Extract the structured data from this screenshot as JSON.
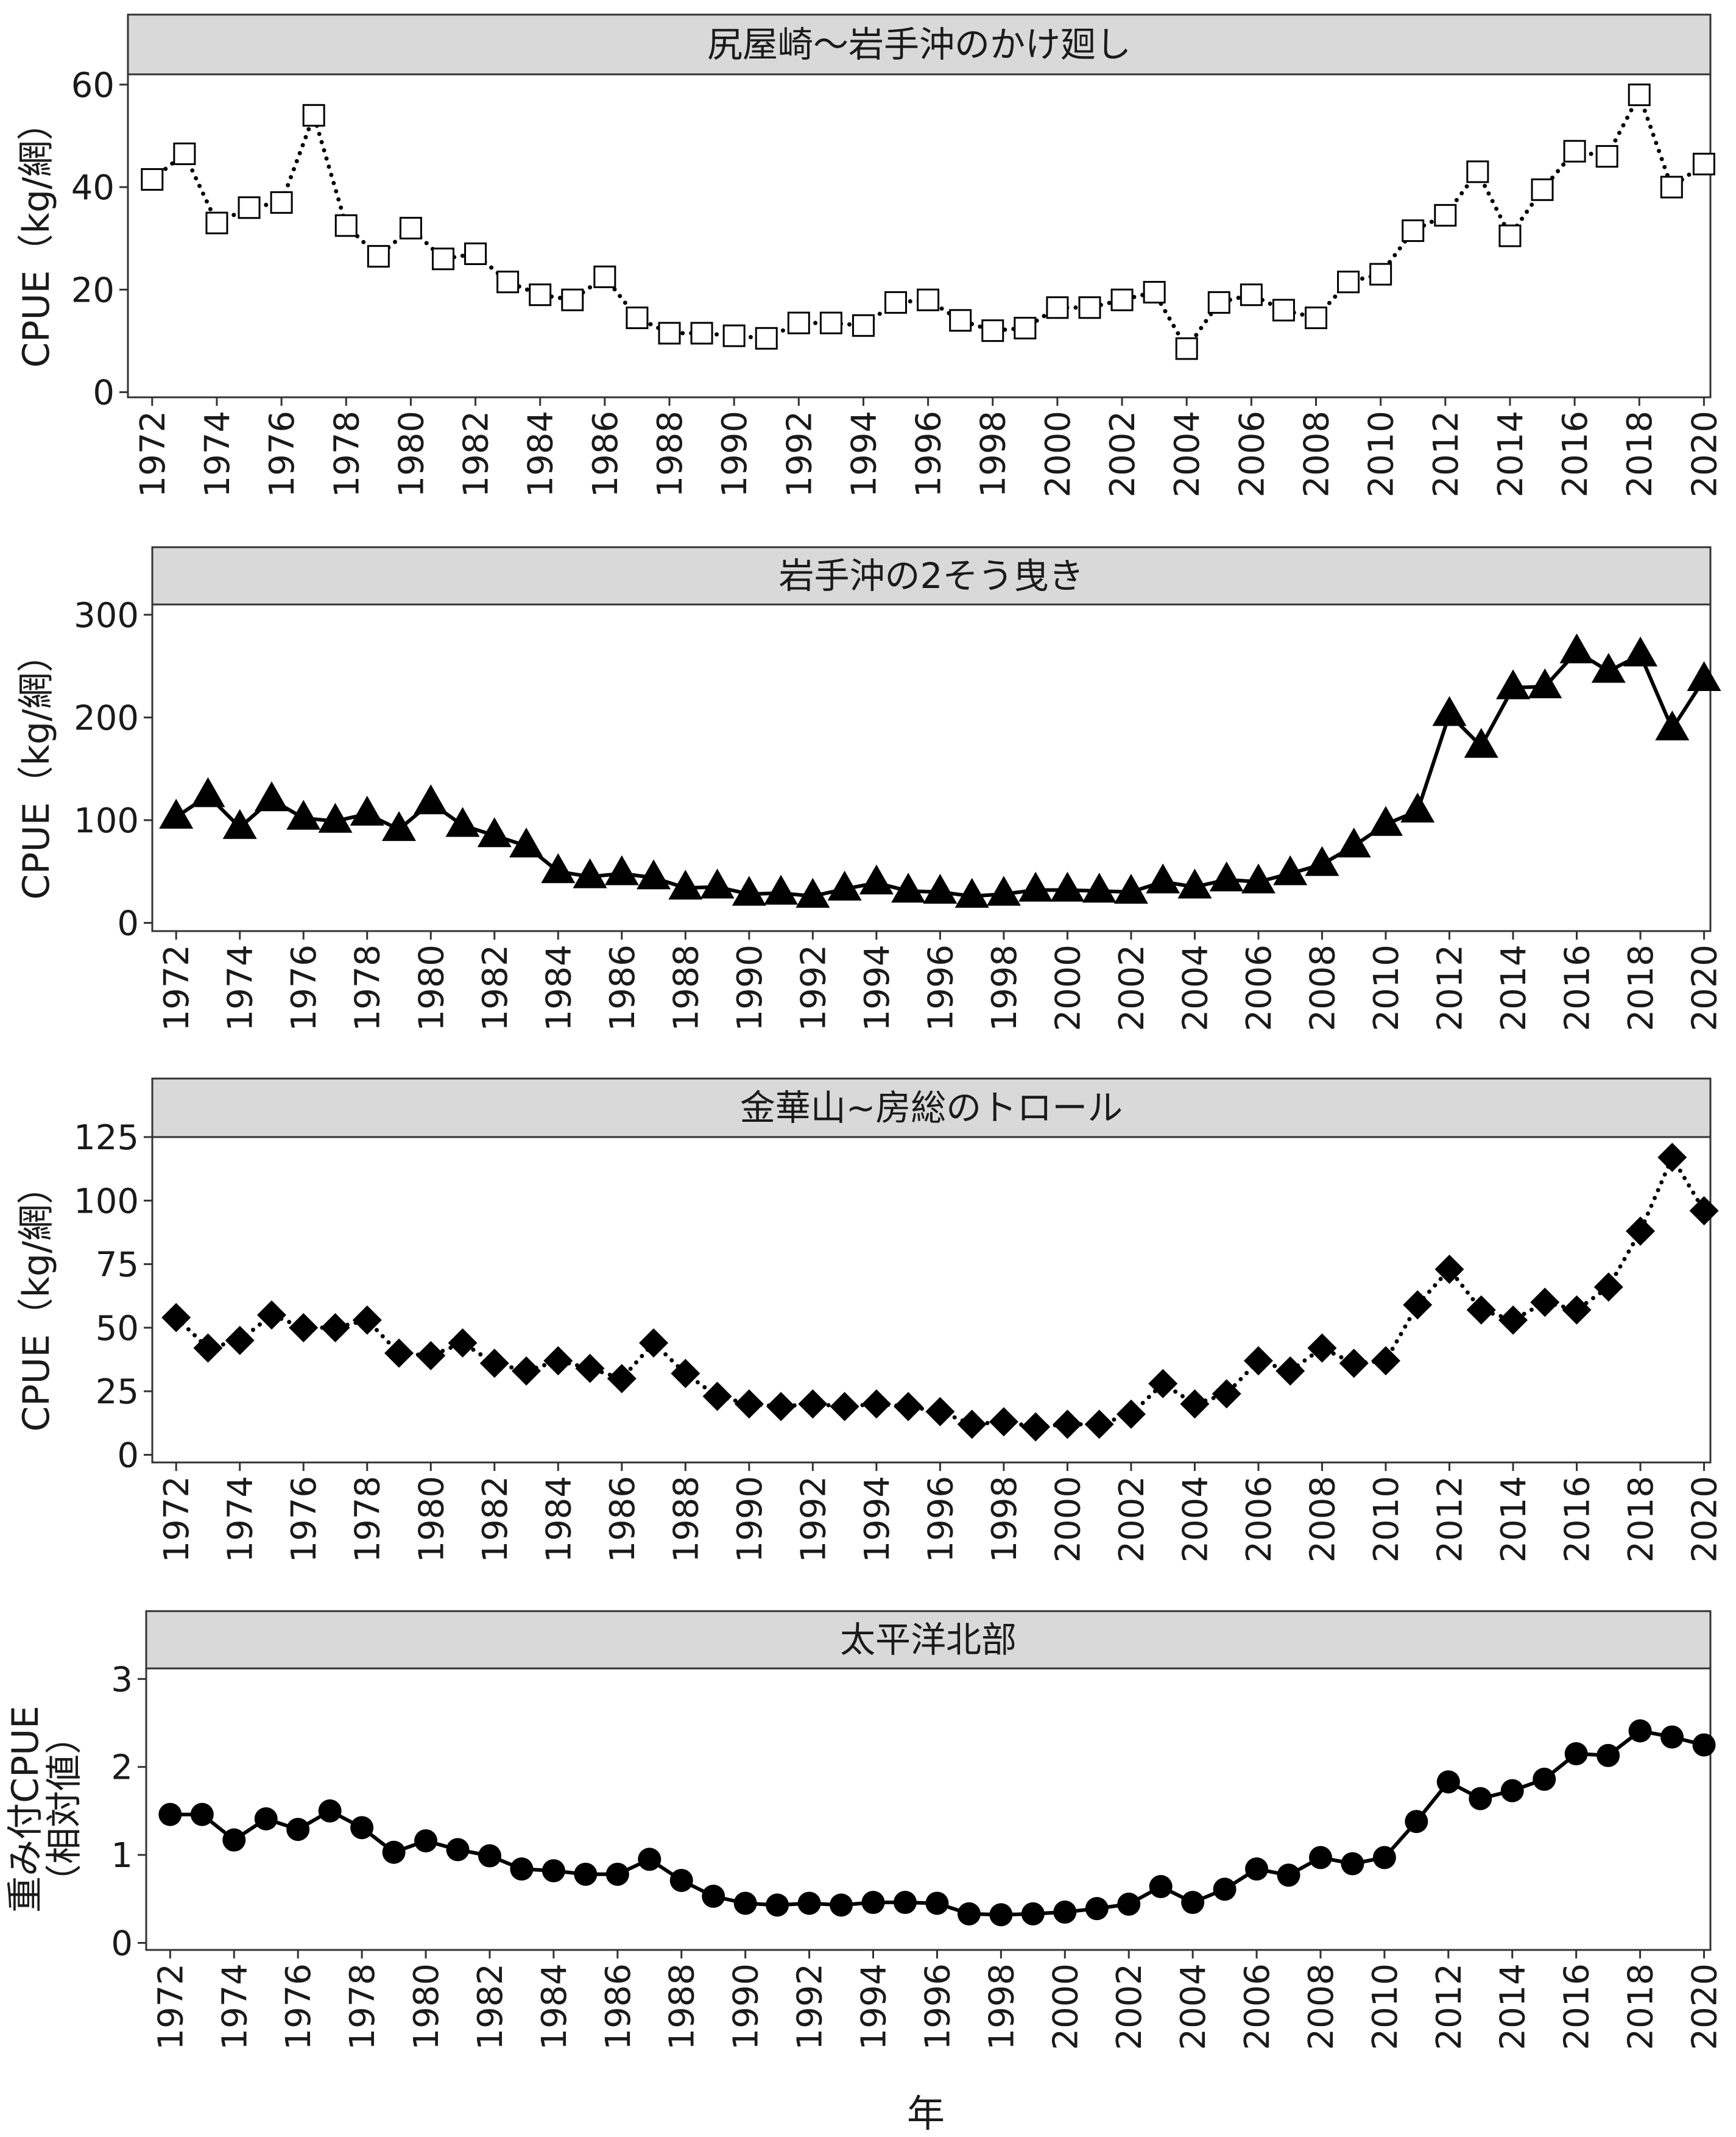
{
  "x_axis_title": "年",
  "chart_data": [
    {
      "type": "line",
      "title": "尻屋崎～岩手沖のかけ廻し",
      "ylabel": "CPUE（kg/網）",
      "xlabel": "",
      "ylim": [
        -1,
        62
      ],
      "yticks": [
        0,
        20,
        40,
        60
      ],
      "xticks": [
        1972,
        1974,
        1976,
        1978,
        1980,
        1982,
        1984,
        1986,
        1988,
        1990,
        1992,
        1994,
        1996,
        1998,
        2000,
        2002,
        2004,
        2006,
        2008,
        2010,
        2012,
        2014,
        2016,
        2018,
        2020
      ],
      "line_style": "dotted",
      "marker": "open-square",
      "series": [
        {
          "x": [
            1972,
            1973,
            1974,
            1975,
            1976,
            1977,
            1978,
            1979,
            1980,
            1981,
            1982,
            1983,
            1984,
            1985,
            1986,
            1987,
            1988,
            1989,
            1990,
            1991,
            1992,
            1993,
            1994,
            1995,
            1996,
            1997,
            1998,
            1999,
            2000,
            2001,
            2002,
            2003,
            2004,
            2005,
            2006,
            2007,
            2008,
            2009,
            2010,
            2011,
            2012,
            2013,
            2014,
            2015,
            2016,
            2017,
            2018,
            2019,
            2020
          ],
          "values": [
            41.5,
            46.5,
            33,
            36,
            37,
            54,
            32.5,
            26.5,
            32,
            26,
            27,
            21.5,
            19,
            18,
            22.5,
            14.5,
            11.5,
            11.5,
            11,
            10.5,
            13.5,
            13.5,
            13,
            17.5,
            18,
            14,
            12,
            12.5,
            16.5,
            16.5,
            18,
            19.5,
            8.5,
            17.5,
            19,
            16,
            14.5,
            21.5,
            23,
            31.5,
            34.5,
            43,
            30.5,
            39.5,
            47,
            46,
            58,
            40,
            44.5
          ]
        }
      ]
    },
    {
      "type": "line",
      "title": "岩手沖の2そう曳き",
      "ylabel": "CPUE（kg/網）",
      "xlabel": "",
      "ylim": [
        -8,
        310
      ],
      "yticks": [
        0,
        100,
        200,
        300
      ],
      "xticks": [
        1972,
        1974,
        1976,
        1978,
        1980,
        1982,
        1984,
        1986,
        1988,
        1990,
        1992,
        1994,
        1996,
        1998,
        2000,
        2002,
        2004,
        2006,
        2008,
        2010,
        2012,
        2014,
        2016,
        2018,
        2020
      ],
      "line_style": "solid",
      "marker": "filled-triangle",
      "series": [
        {
          "x": [
            1972,
            1973,
            1974,
            1975,
            1976,
            1977,
            1978,
            1979,
            1980,
            1981,
            1982,
            1983,
            1984,
            1985,
            1986,
            1987,
            1988,
            1989,
            1990,
            1991,
            1992,
            1993,
            1994,
            1995,
            1996,
            1997,
            1998,
            1999,
            2000,
            2001,
            2002,
            2003,
            2004,
            2005,
            2006,
            2007,
            2008,
            2009,
            2010,
            2011,
            2012,
            2013,
            2014,
            2015,
            2016,
            2017,
            2018,
            2019,
            2020
          ],
          "values": [
            103,
            124,
            93,
            120,
            102,
            99,
            106,
            91,
            117,
            95,
            85,
            75,
            50,
            45,
            48,
            44,
            34,
            35,
            28,
            29,
            26,
            33,
            39,
            31,
            30,
            26,
            28,
            32,
            32,
            31,
            30,
            40,
            35,
            42,
            40,
            48,
            57,
            75,
            96,
            109,
            203,
            172,
            229,
            230,
            264,
            245,
            261,
            189,
            237
          ]
        }
      ]
    },
    {
      "type": "line",
      "title": "金華山~房総のトロール",
      "ylabel": "CPUE（kg/網）",
      "xlabel": "",
      "ylim": [
        -3,
        125
      ],
      "yticks": [
        0,
        25,
        50,
        75,
        100,
        125
      ],
      "xticks": [
        1972,
        1974,
        1976,
        1978,
        1980,
        1982,
        1984,
        1986,
        1988,
        1990,
        1992,
        1994,
        1996,
        1998,
        2000,
        2002,
        2004,
        2006,
        2008,
        2010,
        2012,
        2014,
        2016,
        2018,
        2020
      ],
      "line_style": "dotted",
      "marker": "filled-diamond",
      "series": [
        {
          "x": [
            1972,
            1973,
            1974,
            1975,
            1976,
            1977,
            1978,
            1979,
            1980,
            1981,
            1982,
            1983,
            1984,
            1985,
            1986,
            1987,
            1988,
            1989,
            1990,
            1991,
            1992,
            1993,
            1994,
            1995,
            1996,
            1997,
            1998,
            1999,
            2000,
            2001,
            2002,
            2003,
            2004,
            2005,
            2006,
            2007,
            2008,
            2009,
            2010,
            2011,
            2012,
            2013,
            2014,
            2015,
            2016,
            2017,
            2018,
            2019,
            2020
          ],
          "values": [
            54,
            42,
            45,
            55,
            50,
            50,
            53,
            40,
            39,
            44,
            36,
            33,
            37,
            34,
            30,
            44,
            32,
            23,
            20,
            19,
            20,
            19,
            20,
            19,
            17,
            12,
            13,
            11,
            12,
            12,
            16,
            28,
            20,
            24,
            37,
            33,
            42,
            36,
            37,
            59,
            73,
            57,
            53,
            60,
            57,
            66,
            88,
            117,
            96
          ]
        }
      ]
    },
    {
      "type": "line",
      "title": "太平洋北部",
      "ylabel": "重み付CPUE（相対値）",
      "xlabel": "年",
      "ylim": [
        -0.08,
        3.12
      ],
      "yticks": [
        0,
        1,
        2,
        3
      ],
      "xticks": [
        1972,
        1974,
        1976,
        1978,
        1980,
        1982,
        1984,
        1986,
        1988,
        1990,
        1992,
        1994,
        1996,
        1998,
        2000,
        2002,
        2004,
        2006,
        2008,
        2010,
        2012,
        2014,
        2016,
        2018,
        2020
      ],
      "line_style": "solid",
      "marker": "filled-circle",
      "series": [
        {
          "x": [
            1972,
            1973,
            1974,
            1975,
            1976,
            1977,
            1978,
            1979,
            1980,
            1981,
            1982,
            1983,
            1984,
            1985,
            1986,
            1987,
            1988,
            1989,
            1990,
            1991,
            1992,
            1993,
            1994,
            1995,
            1996,
            1997,
            1998,
            1999,
            2000,
            2001,
            2002,
            2003,
            2004,
            2005,
            2006,
            2007,
            2008,
            2009,
            2010,
            2011,
            2012,
            2013,
            2014,
            2015,
            2016,
            2017,
            2018,
            2019,
            2020
          ],
          "values": [
            1.46,
            1.46,
            1.17,
            1.41,
            1.29,
            1.5,
            1.31,
            1.03,
            1.16,
            1.06,
            0.99,
            0.84,
            0.82,
            0.78,
            0.78,
            0.95,
            0.71,
            0.53,
            0.45,
            0.43,
            0.45,
            0.43,
            0.46,
            0.46,
            0.45,
            0.33,
            0.32,
            0.33,
            0.35,
            0.39,
            0.44,
            0.64,
            0.46,
            0.61,
            0.84,
            0.77,
            0.97,
            0.9,
            0.97,
            1.38,
            1.83,
            1.64,
            1.73,
            1.86,
            2.15,
            2.13,
            2.41,
            2.34,
            2.25
          ]
        }
      ]
    }
  ]
}
